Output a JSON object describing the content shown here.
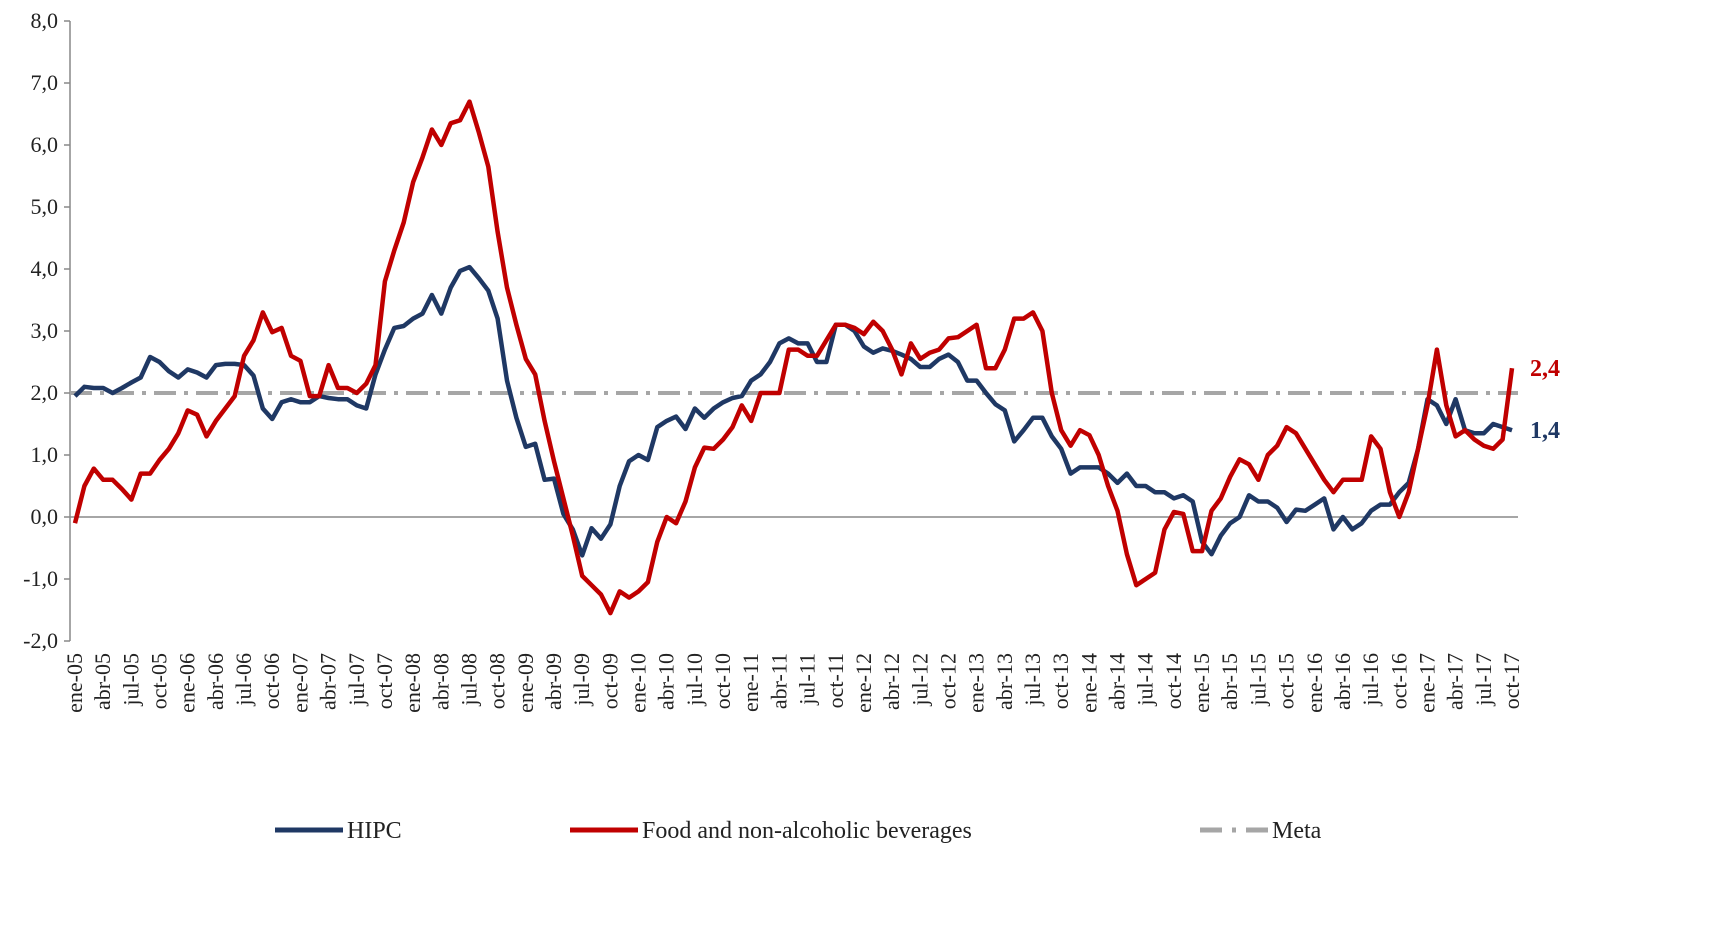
{
  "chart_data": {
    "type": "line",
    "categories": [
      "ene-05",
      null,
      null,
      "abr-05",
      null,
      null,
      "jul-05",
      null,
      null,
      "oct-05",
      null,
      null,
      "ene-06",
      null,
      null,
      "abr-06",
      null,
      null,
      "jul-06",
      null,
      null,
      "oct-06",
      null,
      null,
      "ene-07",
      null,
      null,
      "abr-07",
      null,
      null,
      "jul-07",
      null,
      null,
      "oct-07",
      null,
      null,
      "ene-08",
      null,
      null,
      "abr-08",
      null,
      null,
      "jul-08",
      null,
      null,
      "oct-08",
      null,
      null,
      "ene-09",
      null,
      null,
      "abr-09",
      null,
      null,
      "jul-09",
      null,
      null,
      "oct-09",
      null,
      null,
      "ene-10",
      null,
      null,
      "abr-10",
      null,
      null,
      "jul-10",
      null,
      null,
      "oct-10",
      null,
      null,
      "ene-11",
      null,
      null,
      "abr-11",
      null,
      null,
      "jul-11",
      null,
      null,
      "oct-11",
      null,
      null,
      "ene-12",
      null,
      null,
      "abr-12",
      null,
      null,
      "jul-12",
      null,
      null,
      "oct-12",
      null,
      null,
      "ene-13",
      null,
      null,
      "abr-13",
      null,
      null,
      "jul-13",
      null,
      null,
      "oct-13",
      null,
      null,
      "ene-14",
      null,
      null,
      "abr-14",
      null,
      null,
      "jul-14",
      null,
      null,
      "oct-14",
      null,
      null,
      "ene-15",
      null,
      null,
      "abr-15",
      null,
      null,
      "jul-15",
      null,
      null,
      "oct-15",
      null,
      null,
      "ene-16",
      null,
      null,
      "abr-16",
      null,
      null,
      "jul-16",
      null,
      null,
      "oct-16",
      null,
      null,
      "ene-17",
      null,
      null,
      "abr-17",
      null,
      null,
      "jul-17",
      null,
      null,
      "oct-17"
    ],
    "series": [
      {
        "name": "HIPC",
        "color": "#1f3864",
        "end_label": "1,4",
        "values": [
          1.95,
          2.1,
          2.08,
          2.08,
          2.0,
          2.08,
          2.17,
          2.25,
          2.58,
          2.5,
          2.35,
          2.25,
          2.38,
          2.33,
          2.25,
          2.45,
          2.47,
          2.47,
          2.45,
          2.28,
          1.75,
          1.58,
          1.85,
          1.9,
          1.85,
          1.85,
          1.95,
          1.92,
          1.9,
          1.9,
          1.8,
          1.75,
          2.3,
          2.7,
          3.05,
          3.08,
          3.2,
          3.28,
          3.58,
          3.28,
          3.7,
          3.97,
          4.03,
          3.85,
          3.65,
          3.2,
          2.2,
          1.6,
          1.13,
          1.18,
          0.6,
          0.62,
          0.05,
          -0.2,
          -0.62,
          -0.18,
          -0.35,
          -0.12,
          0.5,
          0.9,
          1.0,
          0.92,
          1.45,
          1.55,
          1.62,
          1.42,
          1.75,
          1.6,
          1.75,
          1.85,
          1.92,
          1.95,
          2.2,
          2.3,
          2.5,
          2.8,
          2.88,
          2.8,
          2.8,
          2.5,
          2.5,
          3.1,
          3.1,
          3.0,
          2.75,
          2.65,
          2.72,
          2.68,
          2.62,
          2.55,
          2.42,
          2.42,
          2.55,
          2.62,
          2.5,
          2.2,
          2.2,
          2.0,
          1.82,
          1.72,
          1.22,
          1.4,
          1.6,
          1.6,
          1.3,
          1.1,
          0.7,
          0.8,
          0.8,
          0.8,
          0.7,
          0.55,
          0.7,
          0.5,
          0.5,
          0.4,
          0.4,
          0.3,
          0.35,
          0.25,
          -0.4,
          -0.6,
          -0.3,
          -0.1,
          0.0,
          0.35,
          0.25,
          0.25,
          0.15,
          -0.08,
          0.12,
          0.1,
          0.2,
          0.3,
          -0.2,
          0.0,
          -0.2,
          -0.1,
          0.1,
          0.2,
          0.2,
          0.4,
          0.55,
          1.1,
          1.9,
          1.8,
          1.5,
          1.9,
          1.4,
          1.35,
          1.35,
          1.5,
          1.45,
          1.4
        ]
      },
      {
        "name": "Food and non-alcoholic beverages",
        "color": "#c00000",
        "end_label": "2,4",
        "values": [
          -0.1,
          0.5,
          0.78,
          0.6,
          0.6,
          0.45,
          0.28,
          0.7,
          0.7,
          0.92,
          1.1,
          1.35,
          1.72,
          1.65,
          1.3,
          1.55,
          1.75,
          1.95,
          2.6,
          2.85,
          3.3,
          2.98,
          3.05,
          2.6,
          2.52,
          1.95,
          1.95,
          2.45,
          2.08,
          2.08,
          2.0,
          2.15,
          2.45,
          3.8,
          4.3,
          4.75,
          5.4,
          5.8,
          6.25,
          6.0,
          6.35,
          6.4,
          6.7,
          6.2,
          5.65,
          4.6,
          3.7,
          3.1,
          2.55,
          2.3,
          1.55,
          0.9,
          0.3,
          -0.3,
          -0.95,
          -1.1,
          -1.25,
          -1.55,
          -1.2,
          -1.3,
          -1.2,
          -1.05,
          -0.4,
          0.0,
          -0.1,
          0.25,
          0.8,
          1.12,
          1.1,
          1.25,
          1.45,
          1.8,
          1.55,
          2.0,
          2.0,
          2.0,
          2.7,
          2.7,
          2.6,
          2.6,
          2.85,
          3.1,
          3.1,
          3.05,
          2.95,
          3.15,
          3.0,
          2.7,
          2.3,
          2.8,
          2.55,
          2.65,
          2.7,
          2.88,
          2.9,
          3.0,
          3.1,
          2.4,
          2.4,
          2.7,
          3.2,
          3.2,
          3.3,
          3.0,
          2.0,
          1.4,
          1.15,
          1.4,
          1.32,
          1.0,
          0.5,
          0.1,
          -0.6,
          -1.1,
          -1.0,
          -0.9,
          -0.2,
          0.08,
          0.05,
          -0.55,
          -0.55,
          0.1,
          0.3,
          0.65,
          0.93,
          0.85,
          0.6,
          1.0,
          1.15,
          1.45,
          1.35,
          1.1,
          0.85,
          0.6,
          0.4,
          0.6,
          0.6,
          0.6,
          1.3,
          1.1,
          0.4,
          0.0,
          0.4,
          1.1,
          1.8,
          2.7,
          1.8,
          1.3,
          1.4,
          1.25,
          1.15,
          1.1,
          1.25,
          2.4
        ]
      }
    ],
    "reference_line": {
      "name": "Meta",
      "value": 2,
      "color": "#a6a6a6"
    },
    "ylim": [
      -2,
      8
    ],
    "yticks": [
      {
        "value": -2,
        "label": "-2,0"
      },
      {
        "value": -1,
        "label": "-1,0"
      },
      {
        "value": 0,
        "label": "0,0"
      },
      {
        "value": 1,
        "label": "1,0"
      },
      {
        "value": 2,
        "label": "2,0"
      },
      {
        "value": 3,
        "label": "3,0"
      },
      {
        "value": 4,
        "label": "4,0"
      },
      {
        "value": 5,
        "label": "5,0"
      },
      {
        "value": 6,
        "label": "6,0"
      },
      {
        "value": 7,
        "label": "7,0"
      },
      {
        "value": 8,
        "label": "8,0"
      }
    ],
    "legend": "bottom"
  }
}
